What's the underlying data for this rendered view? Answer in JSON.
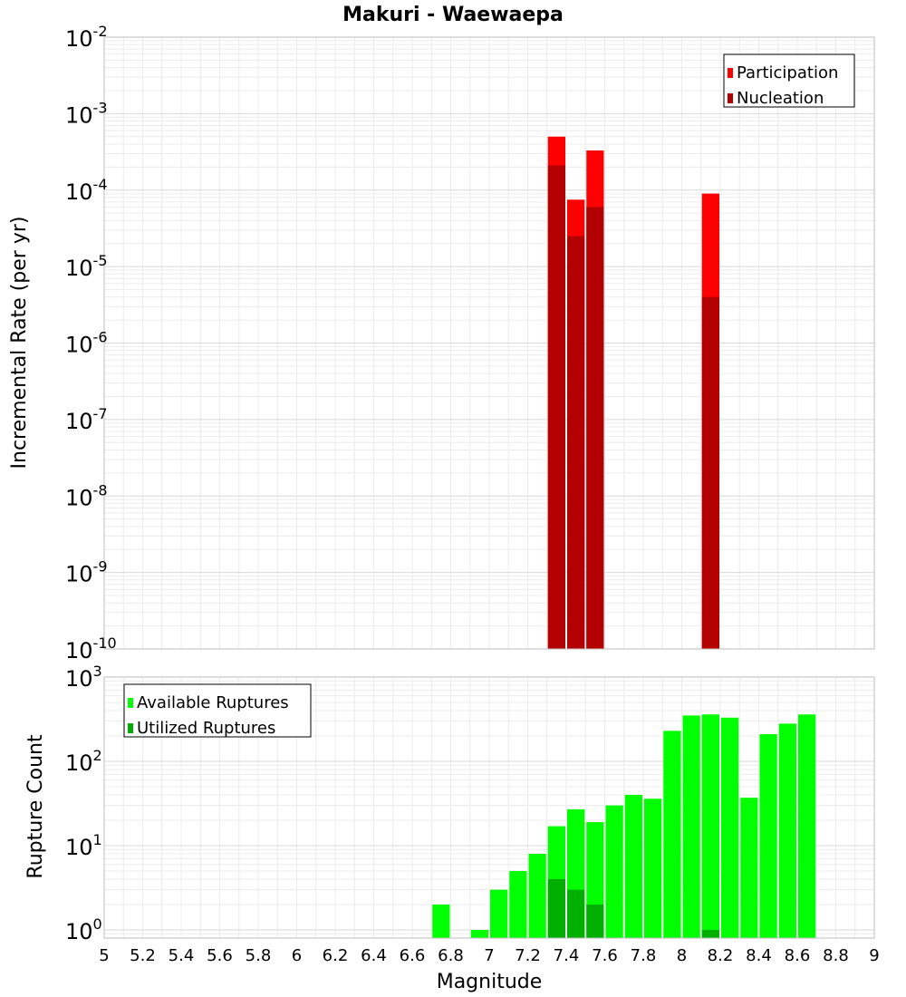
{
  "chart_data": {
    "title": "Makuri - Waewaepa",
    "xlabel": "Magnitude",
    "xlim": [
      5,
      9
    ],
    "x_ticks": [
      "5",
      "5.2",
      "5.4",
      "5.6",
      "5.8",
      "6",
      "6.2",
      "6.4",
      "6.6",
      "6.8",
      "7",
      "7.2",
      "7.4",
      "7.6",
      "7.8",
      "8",
      "8.2",
      "8.4",
      "8.6",
      "8.8",
      "9"
    ],
    "bar_width": 0.1,
    "grid": true,
    "panels": [
      {
        "type": "bar",
        "scale": "log",
        "ylabel": "Incremental Rate (per yr)",
        "ylim": [
          1e-10,
          0.01
        ],
        "y_tick_exponents": [
          -10,
          -9,
          -8,
          -7,
          -6,
          -5,
          -4,
          -3,
          -2
        ],
        "legend_position": "top-right",
        "series": [
          {
            "name": "Participation",
            "color": "#ff0000",
            "x": [
              7.35,
              7.45,
              7.55,
              8.15
            ],
            "values": [
              0.0005,
              7.5e-05,
              0.00033,
              9e-05
            ]
          },
          {
            "name": "Nucleation",
            "color": "#b30000",
            "x": [
              7.35,
              7.45,
              7.55,
              8.15
            ],
            "values": [
              0.00021,
              2.5e-05,
              6e-05,
              4e-06
            ]
          }
        ]
      },
      {
        "type": "bar",
        "scale": "log",
        "ylabel": "Rupture Count",
        "ylim": [
          0.8,
          1000
        ],
        "y_tick_exponents": [
          0,
          1,
          2,
          3
        ],
        "legend_position": "top-left",
        "series": [
          {
            "name": "Available Ruptures",
            "color": "#00ff00",
            "x": [
              6.75,
              6.95,
              7.05,
              7.15,
              7.25,
              7.35,
              7.45,
              7.55,
              7.65,
              7.75,
              7.85,
              7.95,
              8.05,
              8.15,
              8.25,
              8.35,
              8.45,
              8.55,
              8.65
            ],
            "values": [
              2,
              1,
              3,
              5,
              8,
              17,
              27,
              19,
              30,
              40,
              36,
              230,
              350,
              360,
              330,
              37,
              210,
              280,
              360
            ]
          },
          {
            "name": "Utilized Ruptures",
            "color": "#00b000",
            "x": [
              7.35,
              7.45,
              7.55,
              8.15
            ],
            "values": [
              4,
              3,
              2,
              1
            ]
          }
        ]
      }
    ]
  }
}
